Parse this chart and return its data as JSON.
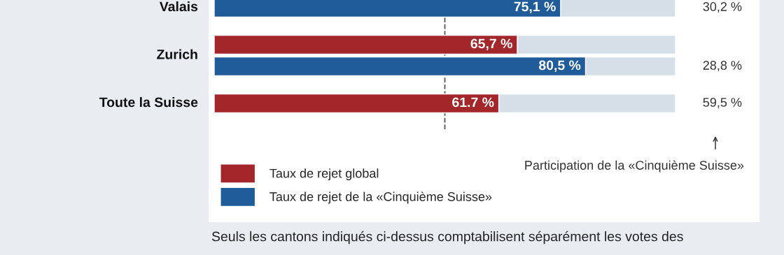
{
  "chart_data": {
    "type": "bar",
    "orientation": "horizontal",
    "categories": [
      "Valais",
      "Zurich",
      "Toute la Suisse"
    ],
    "series": [
      {
        "name": "Taux de rejet global",
        "color": "#a3262a",
        "values": [
          null,
          65.7,
          61.7
        ],
        "value_labels": [
          null,
          "65,7 %",
          "61.7 %"
        ]
      },
      {
        "name": "Taux de rejet de la «Cinquième Suisse»",
        "color": "#1f5c99",
        "values": [
          75.1,
          80.5,
          null
        ],
        "value_labels": [
          "75,1 %",
          "80,5 %",
          null
        ]
      }
    ],
    "xlim": [
      0,
      100
    ],
    "tick_labels": "y",
    "legend": "bottom left",
    "ref_lines": [
      {
        "axis": "x",
        "value": 50,
        "color": "#555555",
        "line_style": "dashed"
      }
    ],
    "annotations": [
      "30,2 %",
      "28,8 %",
      "59,5 %",
      "Participation de la «Cinquième Suisse»",
      "Seuls les cantons indiqués ci-dessus comptabilisent séparément les votes des"
    ]
  }
}
